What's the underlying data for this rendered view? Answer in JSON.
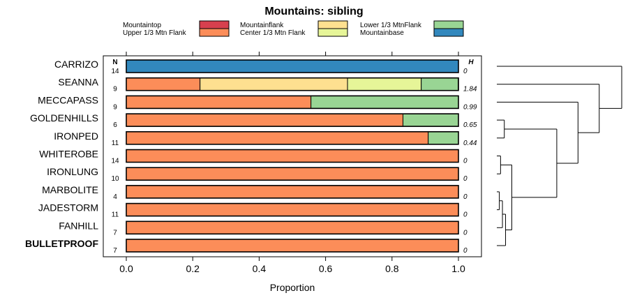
{
  "chart_data": {
    "type": "bar",
    "stacked": true,
    "orientation": "horizontal",
    "title": "Mountains: sibling",
    "xlabel": "Proportion",
    "xlim": [
      0,
      1
    ],
    "xticks": [
      0.0,
      0.2,
      0.4,
      0.6,
      0.8,
      1.0
    ],
    "xtick_labels": [
      "0.0",
      "0.2",
      "0.4",
      "0.6",
      "0.8",
      "1.0"
    ],
    "n_header": "N",
    "h_header": "H",
    "legend": [
      {
        "name": "Mountaintop",
        "color": "#d7404e"
      },
      {
        "name": "Upper 1/3 Mtn Flank",
        "color": "#fc8d59"
      },
      {
        "name": "Mountainflank",
        "color": "#fee090"
      },
      {
        "name": "Center 1/3 Mtn Flank",
        "color": "#e6f598"
      },
      {
        "name": "Lower 1/3 MtnFlank",
        "color": "#99d594"
      },
      {
        "name": "Mountainbase",
        "color": "#3288bd"
      }
    ],
    "categories": [
      "CARRIZO",
      "SEANNA",
      "MECCAPASS",
      "GOLDENHILLS",
      "IRONPED",
      "WHITEROBE",
      "IRONLUNG",
      "MARBOLITE",
      "JADESTORM",
      "FANHILL",
      "BULLETPROOF"
    ],
    "highlighted": "BULLETPROOF",
    "n": [
      14,
      9,
      9,
      6,
      11,
      14,
      10,
      4,
      11,
      7,
      7
    ],
    "h": [
      "0",
      "1.84",
      "0.99",
      "0.65",
      "0.44",
      "0",
      "0",
      "0",
      "0",
      "0",
      "0"
    ],
    "series": [
      {
        "name": "Mountaintop",
        "values": [
          0,
          0,
          0,
          0,
          0,
          0,
          0,
          0,
          0,
          0,
          0
        ]
      },
      {
        "name": "Upper 1/3 Mtn Flank",
        "values": [
          0,
          0.222,
          0.556,
          0.833,
          0.909,
          1,
          1,
          1,
          1,
          1,
          1
        ]
      },
      {
        "name": "Mountainflank",
        "values": [
          0,
          0.444,
          0,
          0,
          0,
          0,
          0,
          0,
          0,
          0,
          0
        ]
      },
      {
        "name": "Center 1/3 Mtn Flank",
        "values": [
          0,
          0.222,
          0,
          0,
          0,
          0,
          0,
          0,
          0,
          0,
          0
        ]
      },
      {
        "name": "Lower 1/3 MtnFlank",
        "values": [
          0,
          0.111,
          0.444,
          0.167,
          0.091,
          0,
          0,
          0,
          0,
          0,
          0
        ]
      },
      {
        "name": "Mountainbase",
        "values": [
          1,
          0,
          0,
          0,
          0,
          0,
          0,
          0,
          0,
          0,
          0
        ]
      }
    ],
    "dendrogram": [
      {
        "a": "CARRIZO",
        "b": "SEANNA_MECCA_REST",
        "height": 1.0
      },
      {
        "a": "SEANNA",
        "b": "MECCA_REST",
        "height": 0.66
      },
      {
        "a": "MECCAPASS",
        "b": "REST",
        "height": 0.47
      },
      {
        "a": "GOLD_IRON",
        "b": "ZEROS",
        "height": 0.4
      },
      {
        "a": "GOLDENHILLS",
        "b": "IRONPED",
        "height": 0.06
      },
      {
        "a": "WHITEROBE",
        "b": "IRONLUNG",
        "height": 0.03
      },
      {
        "a": "MARBOLITE",
        "b": "JADESTORM",
        "height": 0.02
      }
    ]
  }
}
